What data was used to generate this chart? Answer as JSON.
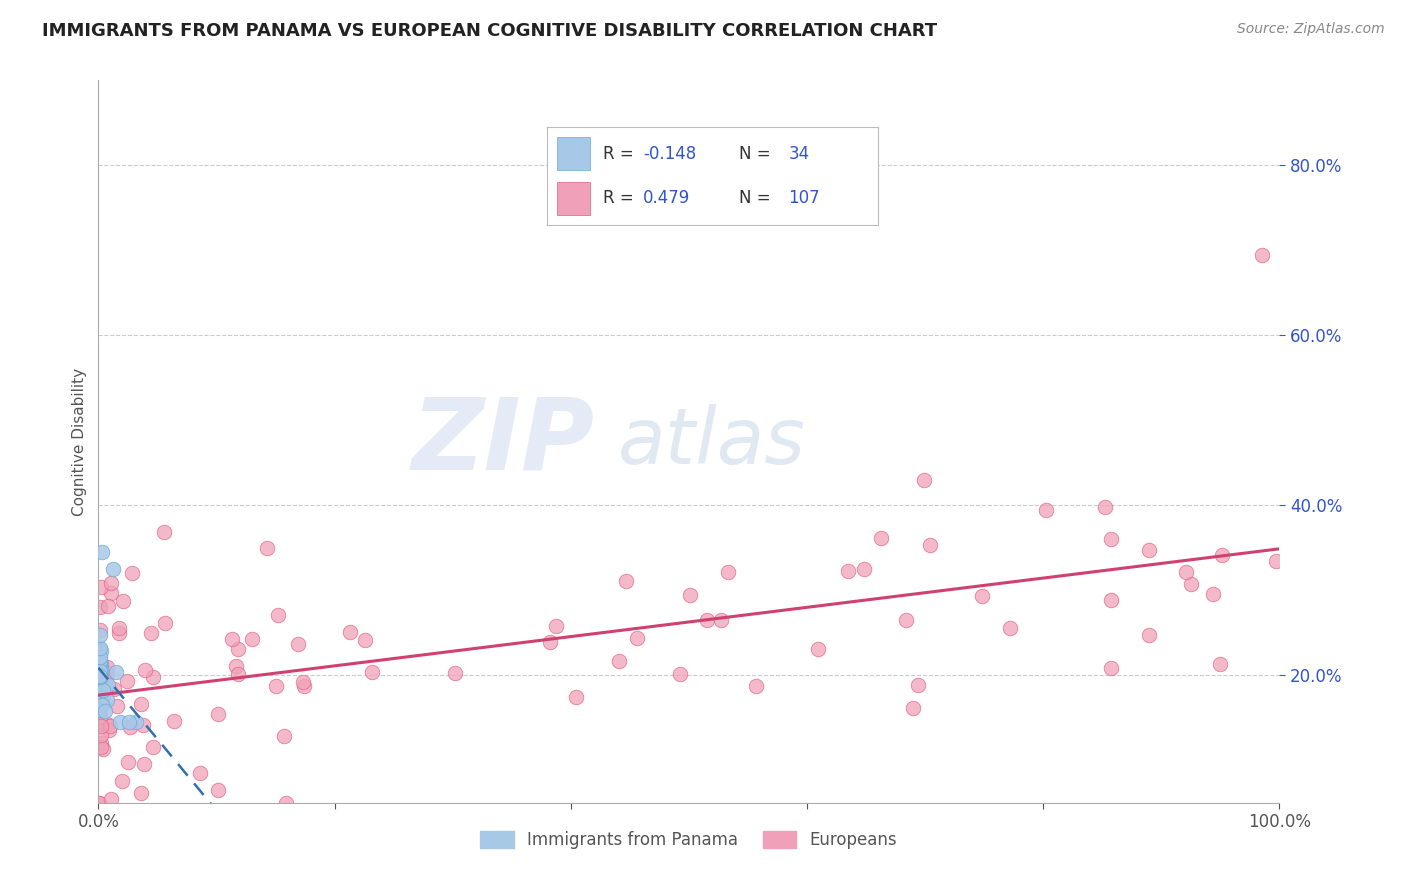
{
  "title": "IMMIGRANTS FROM PANAMA VS EUROPEAN COGNITIVE DISABILITY CORRELATION CHART",
  "source": "Source: ZipAtlas.com",
  "ylabel": "Cognitive Disability",
  "watermark_zip": "ZIP",
  "watermark_atlas": "atlas",
  "xlim": [
    0.0,
    1.0
  ],
  "ylim": [
    0.05,
    0.9
  ],
  "ytick_positions": [
    0.2,
    0.4,
    0.6,
    0.8
  ],
  "ytick_labels": [
    "20.0%",
    "40.0%",
    "60.0%",
    "80.0%"
  ],
  "blue_R": -0.148,
  "blue_N": 34,
  "pink_R": 0.479,
  "pink_N": 107,
  "blue_color": "#a8c8e8",
  "pink_color": "#f0a0b8",
  "blue_edge_color": "#6aaad4",
  "pink_edge_color": "#e06080",
  "blue_line_color": "#3070b0",
  "pink_line_color": "#d04070",
  "legend_text_color": "#3355cc",
  "legend_R_label_color": "#333333",
  "background_color": "#ffffff",
  "grid_color": "#cccccc",
  "title_color": "#222222",
  "source_color": "#888888",
  "ylabel_color": "#555555",
  "xtick_color": "#555555",
  "ytick_color": "#3355cc"
}
